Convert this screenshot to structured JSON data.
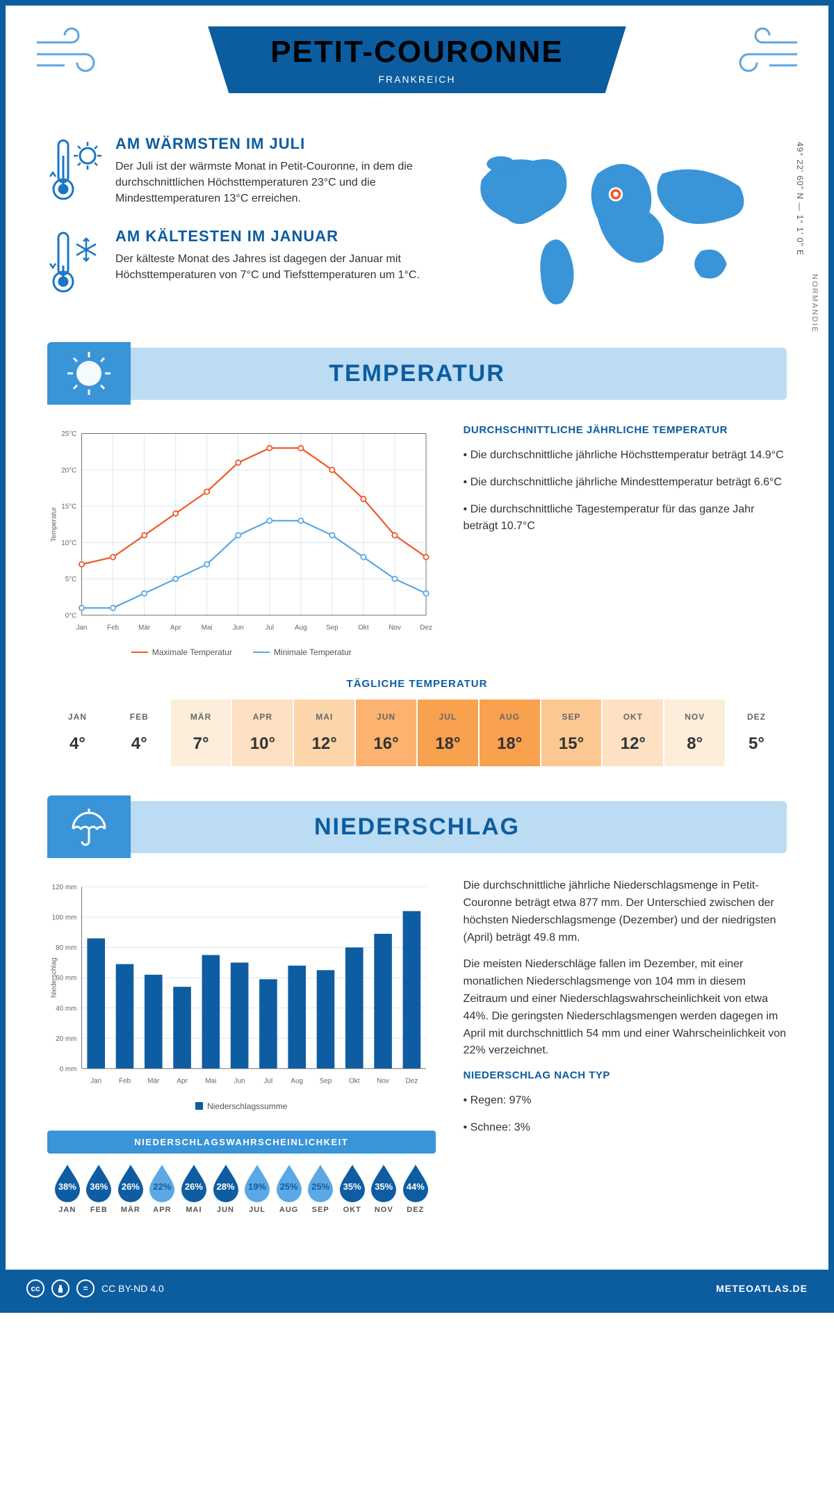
{
  "header": {
    "title": "PETIT-COURONNE",
    "subtitle": "FRANKREICH"
  },
  "coords": "49° 22' 60\" N — 1° 1' 0\" E",
  "region": "NORMANDIE",
  "facts": {
    "warm": {
      "title": "AM WÄRMSTEN IM JULI",
      "text": "Der Juli ist der wärmste Monat in Petit-Couronne, in dem die durchschnittlichen Höchsttemperaturen 23°C und die Mindesttemperaturen 13°C erreichen."
    },
    "cold": {
      "title": "AM KÄLTESTEN IM JANUAR",
      "text": "Der kälteste Monat des Jahres ist dagegen der Januar mit Höchsttemperaturen von 7°C und Tiefsttemperaturen um 1°C."
    }
  },
  "colors": {
    "primary": "#0c5ca0",
    "accent": "#3994d8",
    "light": "#bbdcf3",
    "max_line": "#f15a29",
    "min_line": "#5aa9e6",
    "bar": "#0e5da2"
  },
  "sections": {
    "temperature": "TEMPERATUR",
    "precip": "NIEDERSCHLAG"
  },
  "months": [
    "Jan",
    "Feb",
    "Mär",
    "Apr",
    "Mai",
    "Jun",
    "Jul",
    "Aug",
    "Sep",
    "Okt",
    "Nov",
    "Dez"
  ],
  "months_upper": [
    "JAN",
    "FEB",
    "MÄR",
    "APR",
    "MAI",
    "JUN",
    "JUL",
    "AUG",
    "SEP",
    "OKT",
    "NOV",
    "DEZ"
  ],
  "temp_chart": {
    "type": "line",
    "ylabel": "Temperatur",
    "y_ticks": [
      0,
      5,
      10,
      15,
      20,
      25
    ],
    "y_ticklabels": [
      "0°C",
      "5°C",
      "10°C",
      "15°C",
      "20°C",
      "25°C"
    ],
    "ylim": [
      0,
      25
    ],
    "series": {
      "max": {
        "label": "Maximale Temperatur",
        "color": "#f15a29",
        "values": [
          7,
          8,
          11,
          14,
          17,
          21,
          23,
          23,
          20,
          16,
          11,
          8
        ]
      },
      "min": {
        "label": "Minimale Temperatur",
        "color": "#5aa9e6",
        "values": [
          1,
          1,
          3,
          5,
          7,
          11,
          13,
          13,
          11,
          8,
          5,
          3
        ]
      }
    },
    "grid_color": "#d6e4f2",
    "bg": "#ffffff",
    "font_size": 11
  },
  "temp_text": {
    "heading": "DURCHSCHNITTLICHE JÄHRLICHE TEMPERATUR",
    "b1": "• Die durchschnittliche jährliche Höchsttemperatur beträgt 14.9°C",
    "b2": "• Die durchschnittliche jährliche Mindesttemperatur beträgt 6.6°C",
    "b3": "• Die durchschnittliche Tagestemperatur für das ganze Jahr beträgt 10.7°C"
  },
  "daily_temp": {
    "heading": "TÄGLICHE TEMPERATUR",
    "values": [
      4,
      4,
      7,
      10,
      12,
      16,
      18,
      18,
      15,
      12,
      8,
      5
    ],
    "cell_colors": [
      "#ffffff",
      "#ffffff",
      "#fdeedb",
      "#fde1c2",
      "#fcd5ab",
      "#fbb36f",
      "#f8a14f",
      "#f8a14f",
      "#fcc891",
      "#fde1c2",
      "#fdeedb",
      "#ffffff"
    ]
  },
  "precip_chart": {
    "type": "bar",
    "ylabel": "Niederschlag",
    "y_ticks": [
      0,
      20,
      40,
      60,
      80,
      100,
      120
    ],
    "y_ticklabels": [
      "0 mm",
      "20 mm",
      "40 mm",
      "60 mm",
      "80 mm",
      "100 mm",
      "120 mm"
    ],
    "ylim": [
      0,
      120
    ],
    "values": [
      86,
      69,
      62,
      54,
      75,
      70,
      59,
      68,
      65,
      80,
      89,
      104
    ],
    "bar_color": "#0e5da2",
    "legend_label": "Niederschlagssumme",
    "grid_color": "#d6e4f2"
  },
  "precip_text": {
    "p1": "Die durchschnittliche jährliche Niederschlagsmenge in Petit-Couronne beträgt etwa 877 mm. Der Unterschied zwischen der höchsten Niederschlagsmenge (Dezember) und der niedrigsten (April) beträgt 49.8 mm.",
    "p2": "Die meisten Niederschläge fallen im Dezember, mit einer monatlichen Niederschlagsmenge von 104 mm in diesem Zeitraum und einer Niederschlagswahrscheinlichkeit von etwa 44%. Die geringsten Niederschlagsmengen werden dagegen im April mit durchschnittlich 54 mm und einer Wahrscheinlichkeit von 22% verzeichnet.",
    "type_heading": "NIEDERSCHLAG NACH TYP",
    "type1": "• Regen: 97%",
    "type2": "• Schnee: 3%"
  },
  "precip_prob": {
    "heading": "NIEDERSCHLAGSWAHRSCHEINLICHKEIT",
    "values": [
      38,
      36,
      26,
      22,
      26,
      28,
      19,
      25,
      25,
      35,
      35,
      44
    ],
    "fill_dark": "#0e5da2",
    "fill_light": "#5aa9e6",
    "threshold": 25
  },
  "footer": {
    "license": "CC BY-ND 4.0",
    "site": "METEOATLAS.DE"
  }
}
